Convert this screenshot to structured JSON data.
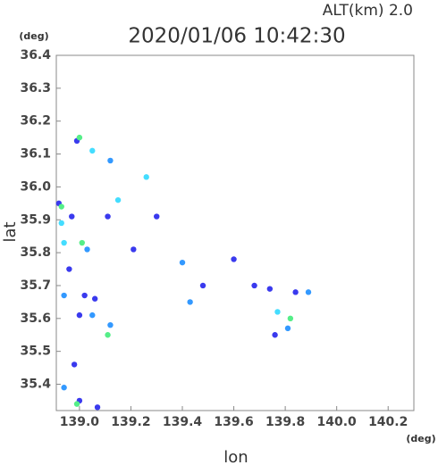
{
  "chart_data": {
    "type": "scatter",
    "title": "2020/01/06 10:42:30",
    "subtitle": "ALT(km)  2.0",
    "y_unit": "(deg)",
    "x_unit": "(deg)",
    "ylabel": "lat",
    "xlabel": "lon",
    "xlim": [
      138.91,
      140.3
    ],
    "ylim": [
      35.32,
      36.4
    ],
    "xticks": [
      {
        "value": 139,
        "label": "139.0"
      },
      139.2,
      139.4,
      139.6,
      139.8,
      {
        "value": 140,
        "label": "140.0"
      },
      140.2
    ],
    "yticks": [
      35.4,
      35.5,
      35.6,
      35.7,
      35.8,
      35.9,
      {
        "value": 36,
        "label": "36.0"
      },
      36.1,
      36.2,
      36.3,
      36.4
    ],
    "series": [
      {
        "color": "#3a3aee",
        "x": [
          138.99,
          138.92,
          138.97,
          139.11,
          139.3,
          139.21,
          139.6,
          138.96,
          139.48,
          139.02,
          139.06,
          139.74,
          139.84,
          139.0,
          139.76,
          138.98,
          139.0,
          139.07,
          139.68
        ],
        "y": [
          36.14,
          35.95,
          35.91,
          35.91,
          35.91,
          35.81,
          35.78,
          35.75,
          35.7,
          35.67,
          35.66,
          35.69,
          35.68,
          35.61,
          35.55,
          35.46,
          35.35,
          35.33,
          35.7
        ]
      },
      {
        "color": "#3399ff",
        "x": [
          139.12,
          139.03,
          139.4,
          138.94,
          139.43,
          139.05,
          139.12,
          139.81,
          138.94,
          139.89
        ],
        "y": [
          36.08,
          35.81,
          35.77,
          35.67,
          35.65,
          35.61,
          35.58,
          35.57,
          35.39,
          35.68
        ]
      },
      {
        "color": "#44ddff",
        "x": [
          139.05,
          139.26,
          139.15,
          138.93,
          138.94,
          139.77
        ],
        "y": [
          36.11,
          36.03,
          35.96,
          35.89,
          35.83,
          35.62
        ]
      },
      {
        "color": "#55ee88",
        "x": [
          139.0,
          138.93,
          139.01,
          139.11,
          139.82,
          138.99
        ],
        "y": [
          36.15,
          35.94,
          35.83,
          35.55,
          35.6,
          35.34
        ]
      }
    ]
  }
}
